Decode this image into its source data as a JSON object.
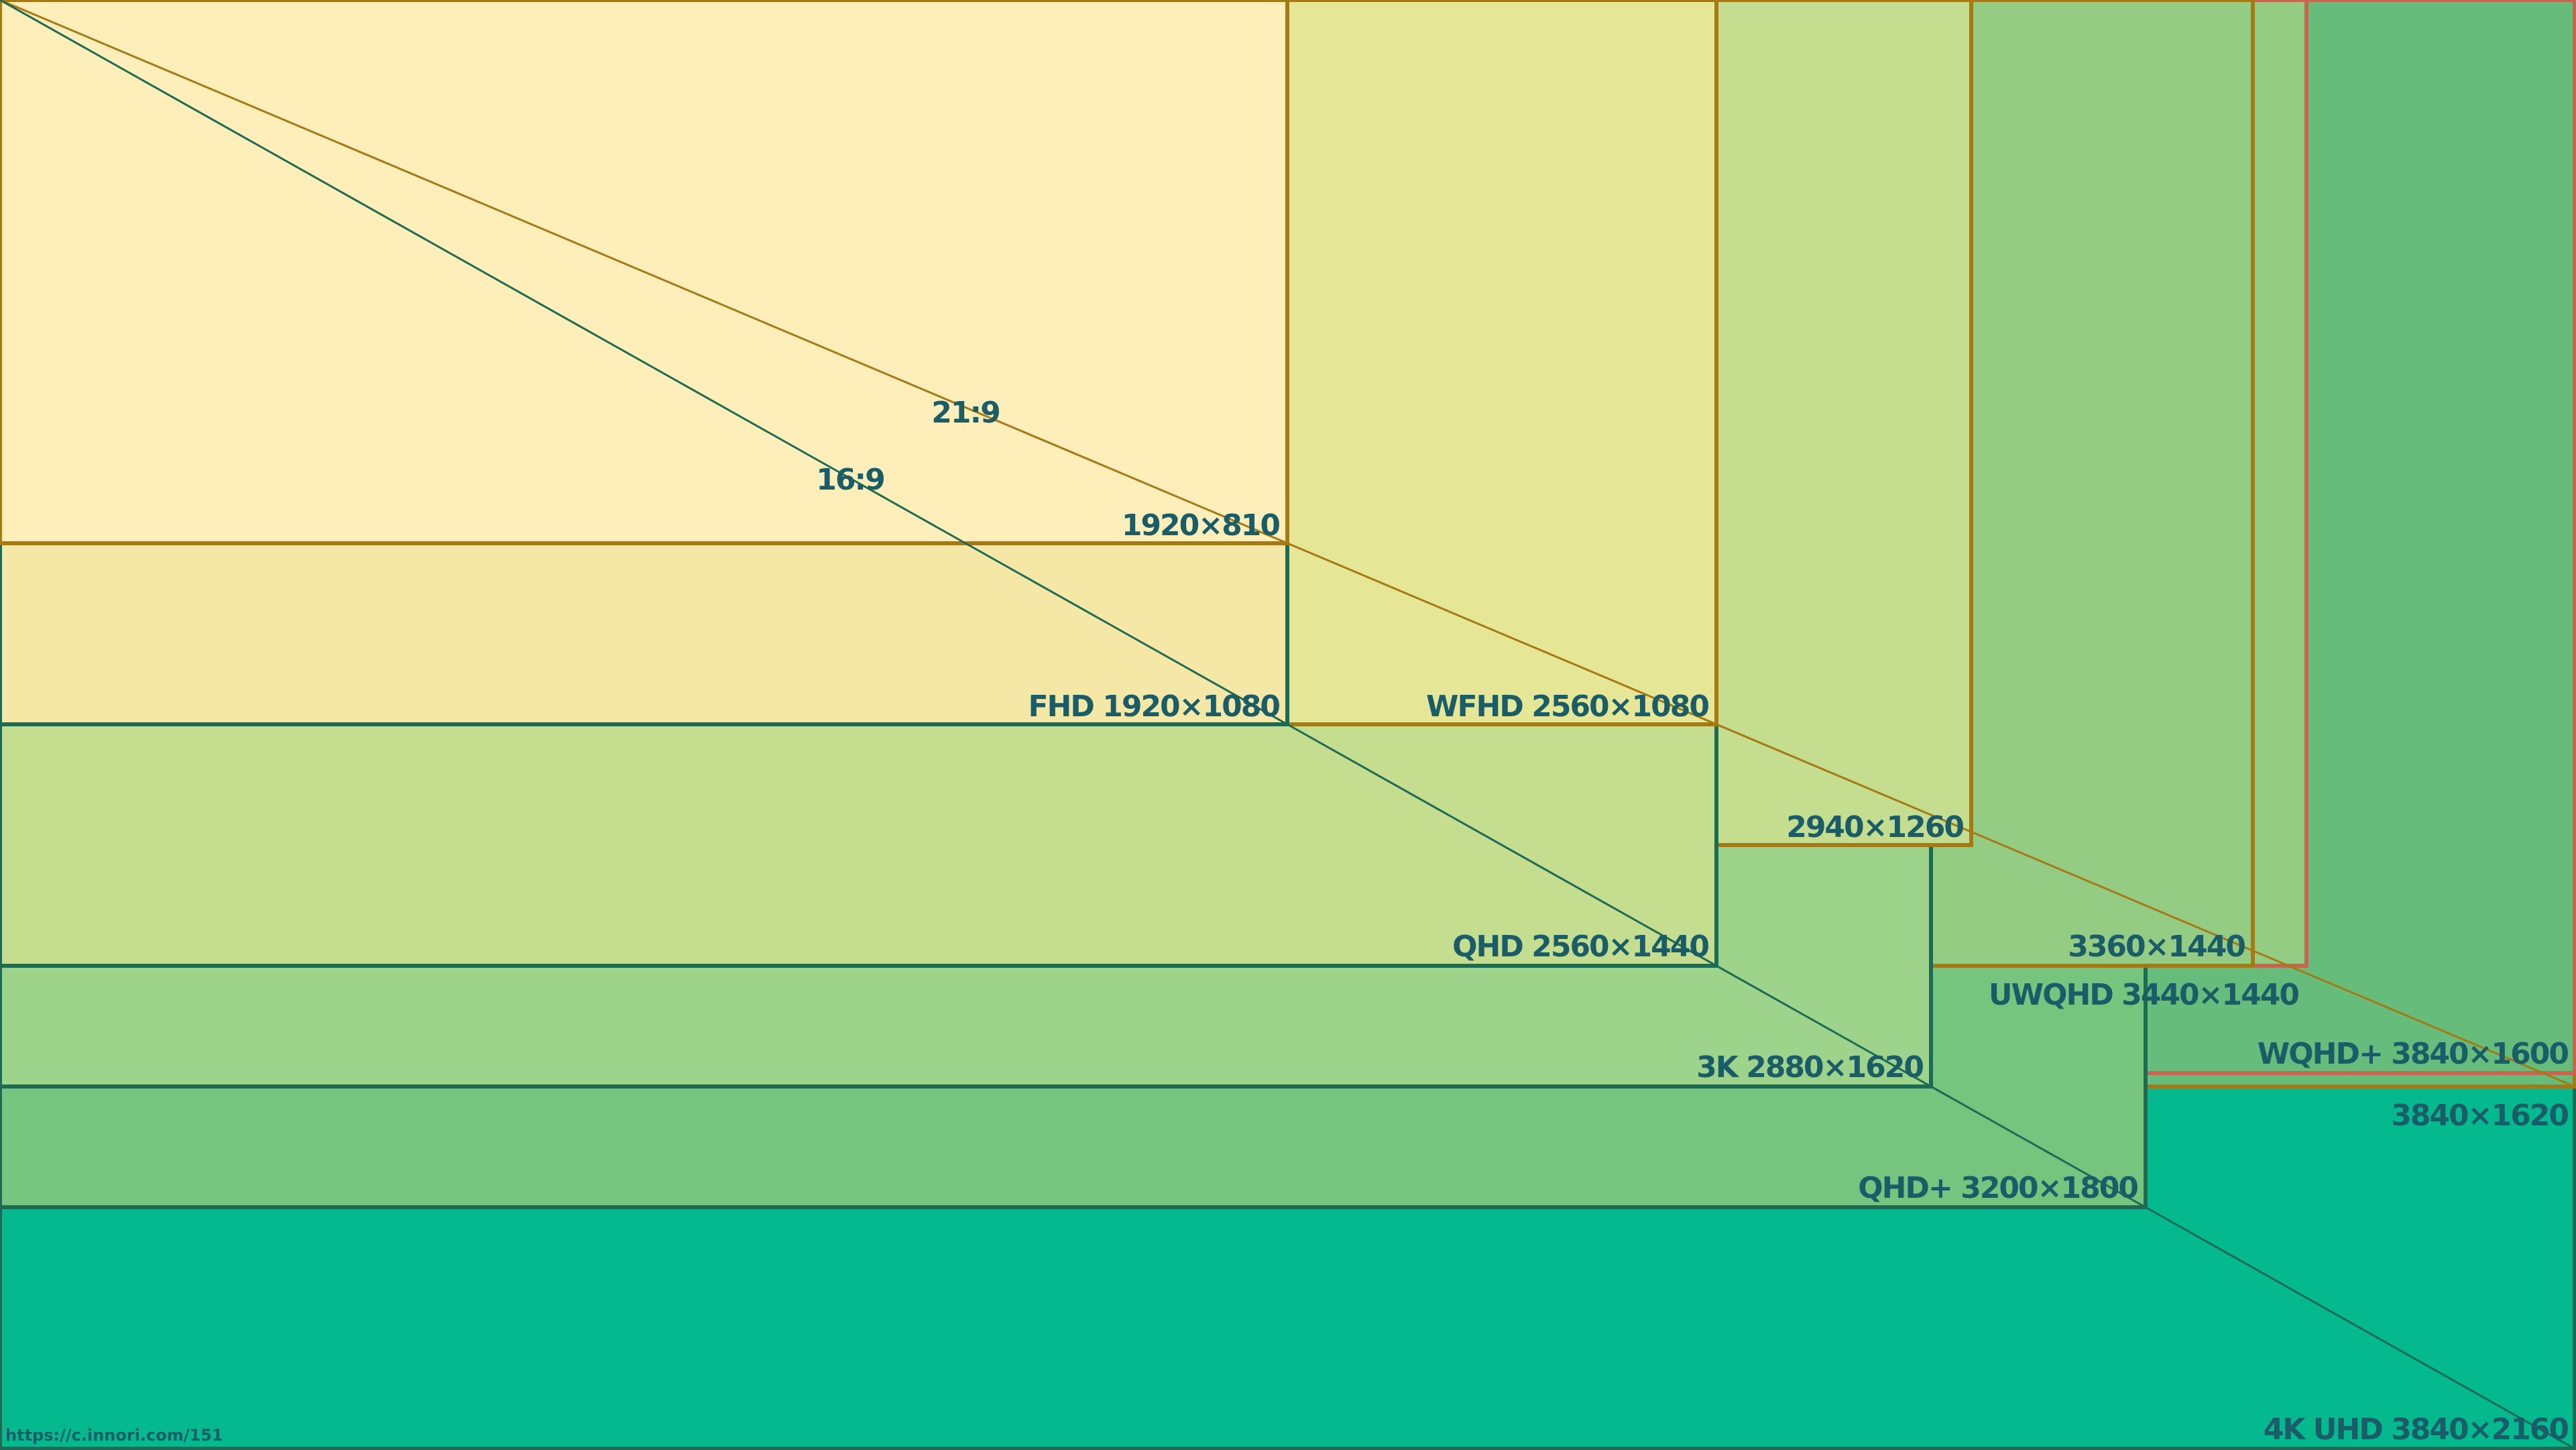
{
  "diagram": {
    "ratios": [
      "21:9",
      "16:9"
    ],
    "labels": {
      "r1920x810": "1920×810",
      "fhd": "FHD 1920×1080",
      "wfhd": "WFHD 2560×1080",
      "r2940x1260": "2940×1260",
      "qhd": "QHD 2560×1440",
      "r3360x1440": "3360×1440",
      "uwqhd": "UWQHD 3440×1440",
      "wqhdplus": "WQHD+ 3840×1600",
      "r3840x1620": "3840×1620",
      "k3": "3K 2880×1620",
      "qhdplus": "QHD+ 3200×1800",
      "uhd4k": "4K UHD 3840×2160"
    },
    "footer": "https://c.innori.com/151"
  }
}
